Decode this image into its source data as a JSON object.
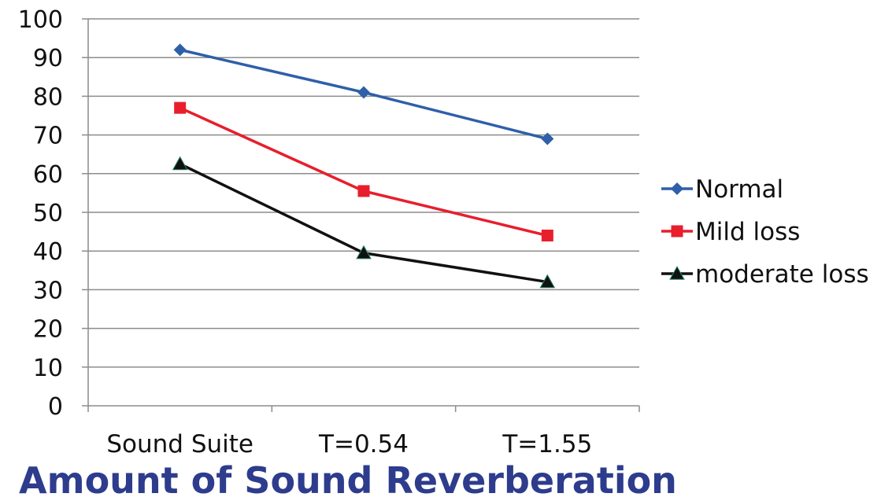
{
  "chart_data": {
    "type": "line",
    "categories": [
      "Sound Suite",
      "T=0.54",
      "T=1.55"
    ],
    "xlabel": "Amount of Sound Reverberation",
    "ylabel": "",
    "ylim": [
      0,
      100
    ],
    "yticks": [
      0,
      10,
      20,
      30,
      40,
      50,
      60,
      70,
      80,
      90,
      100
    ],
    "grid": true,
    "legend": "right",
    "series": [
      {
        "name": "Normal",
        "values": [
          92,
          81,
          69
        ],
        "color": "#2e5fa8",
        "marker": "diamond"
      },
      {
        "name": "Mild loss",
        "values": [
          77,
          55.5,
          44
        ],
        "color": "#e81e2c",
        "marker": "square"
      },
      {
        "name": "moderate loss",
        "values": [
          62.5,
          39.5,
          32
        ],
        "color": "#111111",
        "marker": "triangle"
      }
    ]
  }
}
